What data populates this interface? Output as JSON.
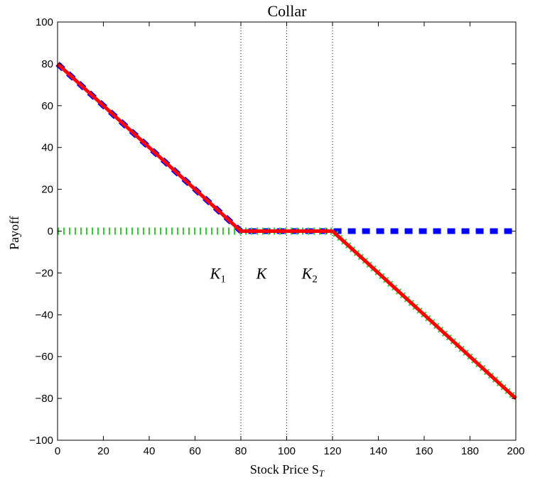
{
  "chart_data": {
    "type": "line",
    "title": "Collar",
    "xlabel": "Stock Price S",
    "xlabel_sub": "T",
    "ylabel": "Payoff",
    "xlim": [
      0,
      200
    ],
    "ylim": [
      -100,
      100
    ],
    "xticks": [
      0,
      20,
      40,
      60,
      80,
      100,
      120,
      140,
      160,
      180,
      200
    ],
    "yticks": [
      -100,
      -80,
      -60,
      -40,
      -20,
      0,
      20,
      40,
      60,
      80,
      100
    ],
    "grid": false,
    "legend": "none",
    "series": [
      {
        "style": "dashed",
        "color": "#0000ff",
        "x": [
          0,
          80,
          200
        ],
        "y": [
          80,
          0,
          0
        ]
      },
      {
        "style": "dotted",
        "color": "#33cc33",
        "x": [
          0,
          120,
          200
        ],
        "y": [
          0,
          0,
          -80
        ]
      },
      {
        "style": "solid",
        "color": "#ff0000",
        "x": [
          0,
          80,
          120,
          200
        ],
        "y": [
          80,
          0,
          0,
          -80
        ]
      }
    ],
    "vlines": [
      80,
      100,
      120
    ],
    "annotations": [
      {
        "text": "K",
        "sub": "1",
        "x": 70,
        "y": -20
      },
      {
        "text": "K",
        "sub": "",
        "x": 89,
        "y": -20
      },
      {
        "text": "K",
        "sub": "2",
        "x": 110,
        "y": -20
      }
    ]
  }
}
